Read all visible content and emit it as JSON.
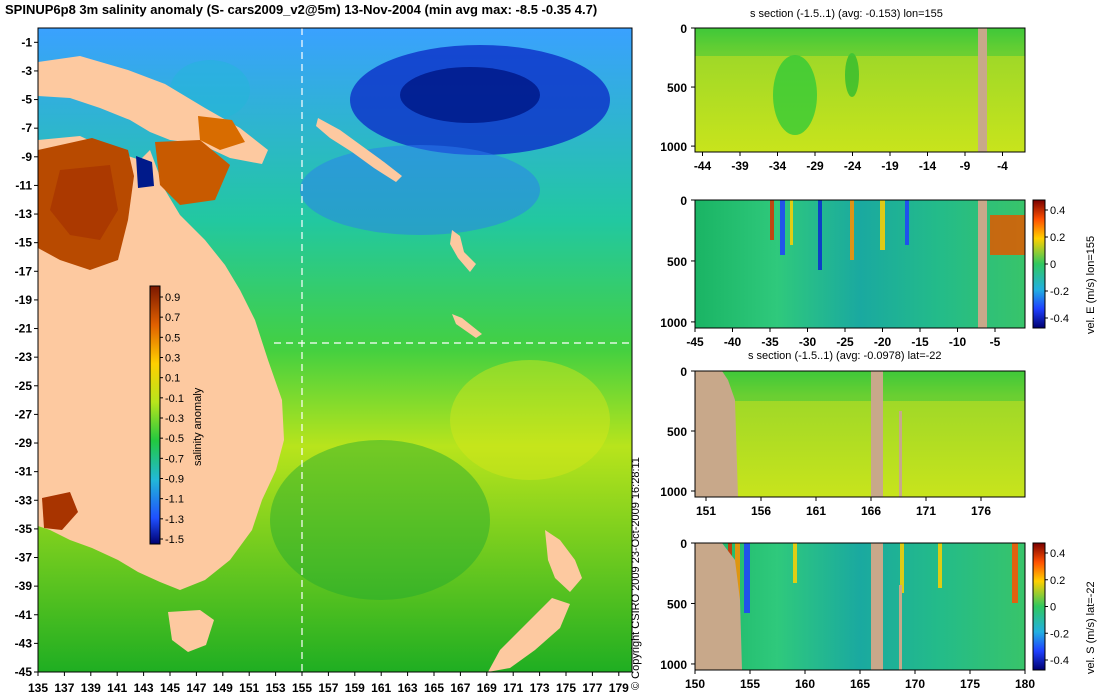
{
  "title": "SPINUP6p8 3m salinity anomaly (S- cars2009_v2@5m) 13-Nov-2004 (min avg max: -8.5 -0.35 4.7)",
  "copyright": "© Copyright CSIRO 2009   23-Oct-2009 16:28:11",
  "colors": {
    "land": "#fdc9a0",
    "section_land": "#c8a88a",
    "guide": "#ffffff"
  },
  "chart_data": [
    {
      "type": "heatmap",
      "name": "salinity-map",
      "x_ticks": [
        135,
        137,
        139,
        141,
        143,
        145,
        147,
        149,
        151,
        153,
        155,
        157,
        159,
        161,
        163,
        165,
        167,
        169,
        171,
        173,
        175,
        177,
        179
      ],
      "y_ticks": [
        -1,
        -3,
        -5,
        -7,
        -9,
        -11,
        -13,
        -15,
        -17,
        -19,
        -21,
        -23,
        -25,
        -27,
        -29,
        -31,
        -33,
        -35,
        -37,
        -39,
        -41,
        -43,
        -45
      ],
      "xlim": [
        135,
        180
      ],
      "ylim": [
        -45,
        0
      ],
      "guide_lon": 155,
      "guide_lat": -22,
      "colorbar": {
        "label": "salinity anomaly",
        "ticks": [
          "0.9",
          "0.7",
          "0.5",
          "0.3",
          "0.1",
          "-0.1",
          "-0.3",
          "-0.5",
          "-0.7",
          "-0.9",
          "-1.1",
          "-1.3",
          "-1.5"
        ],
        "range": [
          -1.5,
          1.0
        ]
      }
    },
    {
      "type": "heatmap",
      "name": "s-section-lon",
      "title": "s section (-1.5..1) (avg: -0.153) lon=155",
      "x_ticks": [
        "-44",
        "-39",
        "-34",
        "-29",
        "-24",
        "-19",
        "-14",
        "-9",
        "-4"
      ],
      "x_values": [
        -44,
        -39,
        -34,
        -29,
        -24,
        -19,
        -14,
        -9,
        -4
      ],
      "xlim": [
        -45,
        -1
      ],
      "y_ticks": [
        "0",
        "500",
        "1000"
      ],
      "y_values": [
        0,
        500,
        1000
      ],
      "ylim": [
        0,
        1050
      ]
    },
    {
      "type": "heatmap",
      "name": "vel-e-section",
      "x_ticks": [
        "-45",
        "-40",
        "-35",
        "-30",
        "-25",
        "-20",
        "-15",
        "-10",
        "-5"
      ],
      "x_values": [
        -45,
        -40,
        -35,
        -30,
        -25,
        -20,
        -15,
        -10,
        -5
      ],
      "xlim": [
        -45,
        -1
      ],
      "y_ticks": [
        "0",
        "500",
        "1000"
      ],
      "y_values": [
        0,
        500,
        1000
      ],
      "ylim": [
        0,
        1050
      ],
      "colorbar": {
        "label": "vel. E (m/s) lon=155",
        "ticks": [
          "0.4",
          "0.2",
          "0",
          "-0.2",
          "-0.4"
        ]
      }
    },
    {
      "type": "heatmap",
      "name": "s-section-lat",
      "title": "s section (-1.5..1) (avg: -0.0978) lat=-22",
      "x_ticks": [
        "151",
        "156",
        "161",
        "166",
        "171",
        "176"
      ],
      "x_values": [
        151,
        156,
        161,
        166,
        171,
        176
      ],
      "xlim": [
        150,
        180
      ],
      "y_ticks": [
        "0",
        "500",
        "1000"
      ],
      "y_values": [
        0,
        500,
        1000
      ],
      "ylim": [
        0,
        1050
      ]
    },
    {
      "type": "heatmap",
      "name": "vel-s-section",
      "x_ticks": [
        "150",
        "155",
        "160",
        "165",
        "170",
        "175",
        "180"
      ],
      "x_values": [
        150,
        155,
        160,
        165,
        170,
        175,
        180
      ],
      "xlim": [
        150,
        180
      ],
      "y_ticks": [
        "0",
        "500",
        "1000"
      ],
      "y_values": [
        0,
        500,
        1000
      ],
      "ylim": [
        0,
        1050
      ],
      "colorbar": {
        "label": "vel. S (m/s) lat=-22",
        "ticks": [
          "0.4",
          "0.2",
          "0",
          "-0.2",
          "-0.4"
        ]
      }
    }
  ]
}
